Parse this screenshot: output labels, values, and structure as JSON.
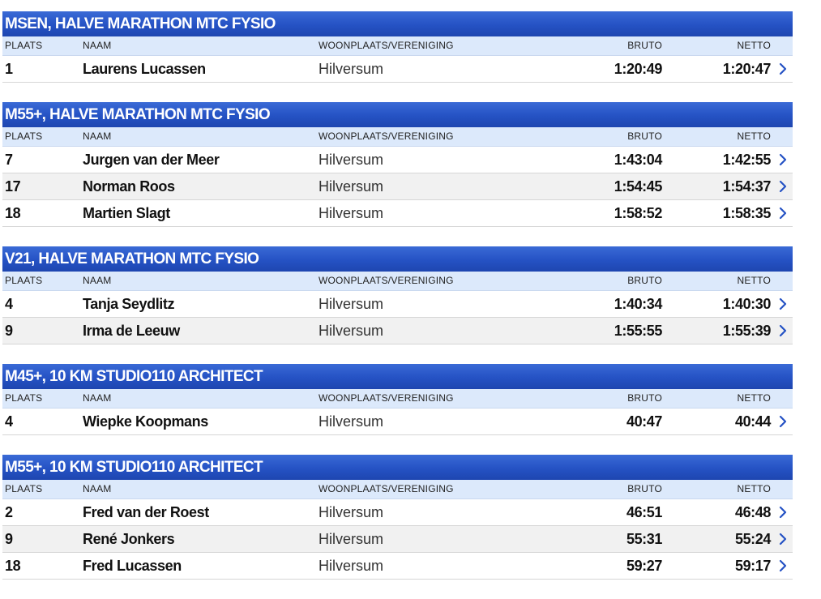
{
  "columns": {
    "place": "PLAATS",
    "name": "NAAM",
    "city": "WOONPLAATS/VERENIGING",
    "bruto": "BRUTO",
    "netto": "NETTO"
  },
  "icon": "chevron-right-icon",
  "colors": {
    "header_blue": "#2552c4",
    "column_header_bg": "#dce9fb",
    "chevron": "#2552c4"
  },
  "sections": [
    {
      "title": "MSEN, HALVE MARATHON MTC FYSIO",
      "rows": [
        {
          "place": "1",
          "name": "Laurens Lucassen",
          "city": "Hilversum",
          "bruto": "1:20:49",
          "netto": "1:20:47"
        }
      ]
    },
    {
      "title": "M55+, HALVE MARATHON MTC FYSIO",
      "rows": [
        {
          "place": "7",
          "name": "Jurgen van der Meer",
          "city": "Hilversum",
          "bruto": "1:43:04",
          "netto": "1:42:55"
        },
        {
          "place": "17",
          "name": "Norman Roos",
          "city": "Hilversum",
          "bruto": "1:54:45",
          "netto": "1:54:37"
        },
        {
          "place": "18",
          "name": "Martien Slagt",
          "city": "Hilversum",
          "bruto": "1:58:52",
          "netto": "1:58:35"
        }
      ]
    },
    {
      "title": "V21, HALVE MARATHON MTC FYSIO",
      "rows": [
        {
          "place": "4",
          "name": "Tanja Seydlitz",
          "city": "Hilversum",
          "bruto": "1:40:34",
          "netto": "1:40:30"
        },
        {
          "place": "9",
          "name": "Irma de Leeuw",
          "city": "Hilversum",
          "bruto": "1:55:55",
          "netto": "1:55:39"
        }
      ]
    },
    {
      "title": "M45+, 10 KM STUDIO110 ARCHITECT",
      "rows": [
        {
          "place": "4",
          "name": "Wiepke Koopmans",
          "city": "Hilversum",
          "bruto": "40:47",
          "netto": "40:44"
        }
      ]
    },
    {
      "title": "M55+, 10 KM STUDIO110 ARCHITECT",
      "rows": [
        {
          "place": "2",
          "name": "Fred van der Roest",
          "city": "Hilversum",
          "bruto": "46:51",
          "netto": "46:48"
        },
        {
          "place": "9",
          "name": "René Jonkers",
          "city": "Hilversum",
          "bruto": "55:31",
          "netto": "55:24"
        },
        {
          "place": "18",
          "name": "Fred Lucassen",
          "city": "Hilversum",
          "bruto": "59:27",
          "netto": "59:17"
        }
      ]
    }
  ]
}
